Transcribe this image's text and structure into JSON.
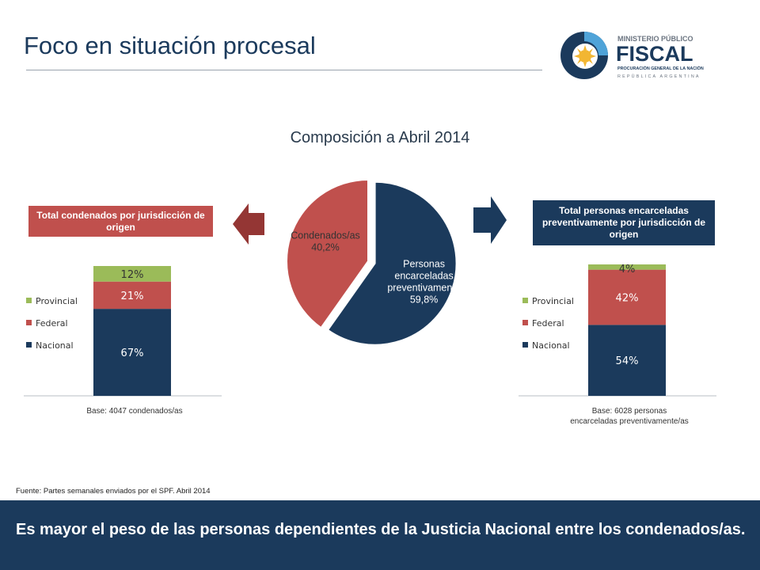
{
  "page": {
    "title": "Foco en situación procesal",
    "source": "Fuente: Partes semanales enviados por el SPF. Abril  2014",
    "conclusion": "Es mayor el peso de las personas dependientes de la Justicia Nacional entre los condenados/as."
  },
  "logo": {
    "line1": "MINISTERIO PÚBLICO",
    "line2": "FISCAL",
    "line3": "PROCURACIÓN GENERAL DE LA NACIÓN",
    "line4": "REPÚBLICA ARGENTINA"
  },
  "boxes": {
    "left": "Total condenados por jurisdicción de origen",
    "right": "Total personas encarceladas preventivamente por jurisdicción de origen"
  },
  "colors": {
    "navy": "#1b3a5c",
    "red": "#c0504d",
    "green": "#9bbb59"
  },
  "chart_data": [
    {
      "type": "pie",
      "title": "Composición a Abril 2014",
      "slices": [
        {
          "label": "Personas encarceladas preventivamente",
          "value": 59.8,
          "value_label": "59,8%",
          "color": "#1b3a5c",
          "exploded": true
        },
        {
          "label": "Condenados/as",
          "value": 40.2,
          "value_label": "40,2%",
          "color": "#c0504d",
          "exploded": false
        }
      ]
    },
    {
      "type": "bar",
      "stacked": true,
      "categories": [
        "Base: 4047 condenados/as"
      ],
      "series": [
        {
          "name": "Nacional",
          "values": [
            67
          ],
          "labels": [
            "67%"
          ],
          "color": "#1b3a5c"
        },
        {
          "name": "Federal",
          "values": [
            21
          ],
          "labels": [
            "21%"
          ],
          "color": "#c0504d"
        },
        {
          "name": "Provincial",
          "values": [
            12
          ],
          "labels": [
            "12%"
          ],
          "color": "#9bbb59"
        }
      ],
      "ylim": [
        0,
        100
      ],
      "legend": "left"
    },
    {
      "type": "bar",
      "stacked": true,
      "categories": [
        "Base: 6028 personas encarceladas preventivamente/as"
      ],
      "series": [
        {
          "name": "Nacional",
          "values": [
            54
          ],
          "labels": [
            "54%"
          ],
          "color": "#1b3a5c"
        },
        {
          "name": "Federal",
          "values": [
            42
          ],
          "labels": [
            "42%"
          ],
          "color": "#c0504d"
        },
        {
          "name": "Provincial",
          "values": [
            4
          ],
          "labels": [
            "4%"
          ],
          "color": "#9bbb59"
        }
      ],
      "ylim": [
        0,
        100
      ],
      "legend": "left"
    }
  ]
}
